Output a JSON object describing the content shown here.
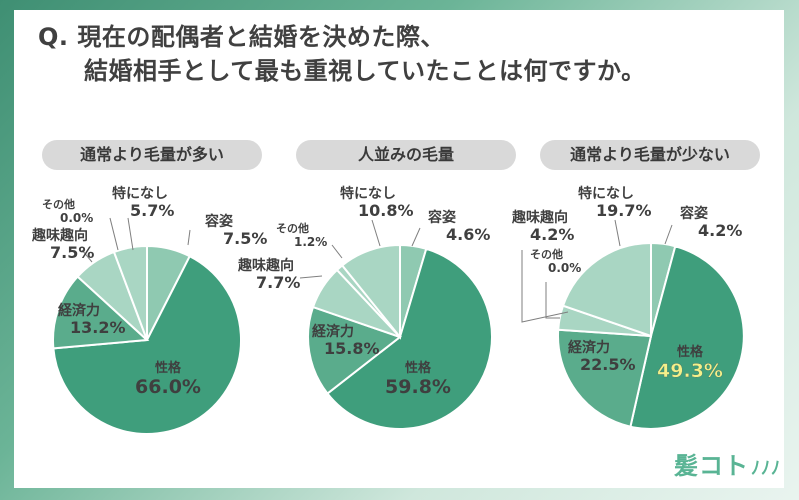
{
  "question": {
    "line1": "Q. 現在の配偶者と結婚を決めた際、",
    "line2": "結婚相手として最も重視していたことは何ですか。"
  },
  "logo": {
    "text": "髪コト",
    "hair_mark": "ﾉﾉﾉ"
  },
  "colors": {
    "dark_green": "#3f9e7c",
    "mid_green": "#5aac8c",
    "light_green": "#8fc9b1",
    "pale_green": "#a9d6c3",
    "highlight_yellow": "#f4f08a"
  },
  "chart_data": [
    {
      "type": "pie",
      "title": "通常より毛量が多い",
      "slices": [
        {
          "label": "容姿",
          "value": 7.5,
          "value_text": "7.5%"
        },
        {
          "label": "性格",
          "value": 66.0,
          "value_text": "66.0%"
        },
        {
          "label": "経済力",
          "value": 13.2,
          "value_text": "13.2%"
        },
        {
          "label": "趣味趣向",
          "value": 7.5,
          "value_text": "7.5%"
        },
        {
          "label": "その他",
          "value": 0.0,
          "value_text": "0.0%"
        },
        {
          "label": "特になし",
          "value": 5.7,
          "value_text": "5.7%"
        }
      ]
    },
    {
      "type": "pie",
      "title": "人並みの毛量",
      "slices": [
        {
          "label": "容姿",
          "value": 4.6,
          "value_text": "4.6%"
        },
        {
          "label": "性格",
          "value": 59.8,
          "value_text": "59.8%"
        },
        {
          "label": "経済力",
          "value": 15.8,
          "value_text": "15.8%"
        },
        {
          "label": "趣味趣向",
          "value": 7.7,
          "value_text": "7.7%"
        },
        {
          "label": "その他",
          "value": 1.2,
          "value_text": "1.2%"
        },
        {
          "label": "特になし",
          "value": 10.8,
          "value_text": "10.8%"
        }
      ]
    },
    {
      "type": "pie",
      "title": "通常より毛量が少ない",
      "slices": [
        {
          "label": "容姿",
          "value": 4.2,
          "value_text": "4.2%"
        },
        {
          "label": "性格",
          "value": 49.3,
          "value_text": "49.3%"
        },
        {
          "label": "経済力",
          "value": 22.5,
          "value_text": "22.5%"
        },
        {
          "label": "趣味趣向",
          "value": 4.2,
          "value_text": "4.2%"
        },
        {
          "label": "その他",
          "value": 0.0,
          "value_text": "0.0%"
        },
        {
          "label": "特になし",
          "value": 19.7,
          "value_text": "19.7%"
        }
      ]
    }
  ]
}
